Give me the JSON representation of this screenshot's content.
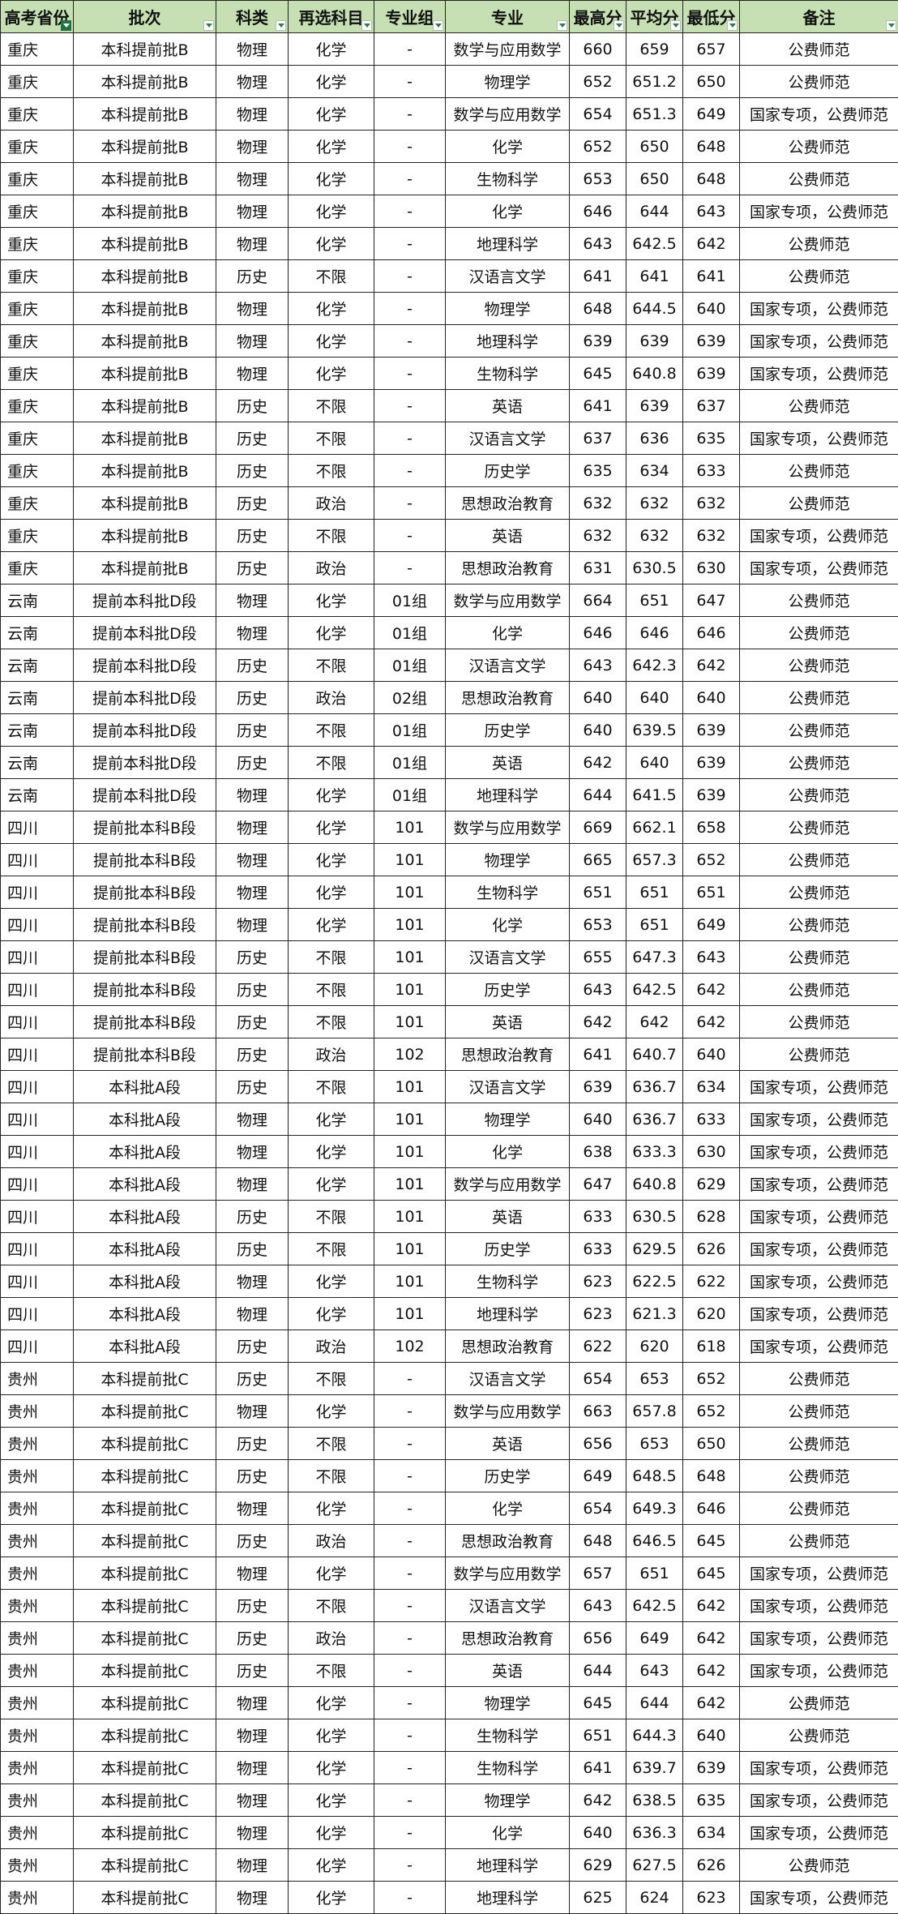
{
  "headers": [
    "高考省份",
    "批次",
    "科类",
    "再选科目",
    "专业组",
    "专业",
    "最高分",
    "平均分",
    "最低分",
    "备注"
  ],
  "filter_active_column": 0,
  "colors": {
    "header_bg": "#c6e0b4",
    "filter_active": "#217346"
  },
  "rows": [
    [
      "重庆",
      "本科提前批B",
      "物理",
      "化学",
      "-",
      "数学与应用数学",
      "660",
      "659",
      "657",
      "公费师范"
    ],
    [
      "重庆",
      "本科提前批B",
      "物理",
      "化学",
      "-",
      "物理学",
      "652",
      "651.2",
      "650",
      "公费师范"
    ],
    [
      "重庆",
      "本科提前批B",
      "物理",
      "化学",
      "-",
      "数学与应用数学",
      "654",
      "651.3",
      "649",
      "国家专项，公费师范"
    ],
    [
      "重庆",
      "本科提前批B",
      "物理",
      "化学",
      "-",
      "化学",
      "652",
      "650",
      "648",
      "公费师范"
    ],
    [
      "重庆",
      "本科提前批B",
      "物理",
      "化学",
      "-",
      "生物科学",
      "653",
      "650",
      "648",
      "公费师范"
    ],
    [
      "重庆",
      "本科提前批B",
      "物理",
      "化学",
      "-",
      "化学",
      "646",
      "644",
      "643",
      "国家专项，公费师范"
    ],
    [
      "重庆",
      "本科提前批B",
      "物理",
      "化学",
      "-",
      "地理科学",
      "643",
      "642.5",
      "642",
      "公费师范"
    ],
    [
      "重庆",
      "本科提前批B",
      "历史",
      "不限",
      "-",
      "汉语言文学",
      "641",
      "641",
      "641",
      "公费师范"
    ],
    [
      "重庆",
      "本科提前批B",
      "物理",
      "化学",
      "-",
      "物理学",
      "648",
      "644.5",
      "640",
      "国家专项，公费师范"
    ],
    [
      "重庆",
      "本科提前批B",
      "物理",
      "化学",
      "-",
      "地理科学",
      "639",
      "639",
      "639",
      "国家专项，公费师范"
    ],
    [
      "重庆",
      "本科提前批B",
      "物理",
      "化学",
      "-",
      "生物科学",
      "645",
      "640.8",
      "639",
      "国家专项，公费师范"
    ],
    [
      "重庆",
      "本科提前批B",
      "历史",
      "不限",
      "-",
      "英语",
      "641",
      "639",
      "637",
      "公费师范"
    ],
    [
      "重庆",
      "本科提前批B",
      "历史",
      "不限",
      "-",
      "汉语言文学",
      "637",
      "636",
      "635",
      "国家专项，公费师范"
    ],
    [
      "重庆",
      "本科提前批B",
      "历史",
      "不限",
      "-",
      "历史学",
      "635",
      "634",
      "633",
      "公费师范"
    ],
    [
      "重庆",
      "本科提前批B",
      "历史",
      "政治",
      "-",
      "思想政治教育",
      "632",
      "632",
      "632",
      "公费师范"
    ],
    [
      "重庆",
      "本科提前批B",
      "历史",
      "不限",
      "-",
      "英语",
      "632",
      "632",
      "632",
      "国家专项，公费师范"
    ],
    [
      "重庆",
      "本科提前批B",
      "历史",
      "政治",
      "-",
      "思想政治教育",
      "631",
      "630.5",
      "630",
      "国家专项，公费师范"
    ],
    [
      "云南",
      "提前本科批D段",
      "物理",
      "化学",
      "01组",
      "数学与应用数学",
      "664",
      "651",
      "647",
      "公费师范"
    ],
    [
      "云南",
      "提前本科批D段",
      "物理",
      "化学",
      "01组",
      "化学",
      "646",
      "646",
      "646",
      "公费师范"
    ],
    [
      "云南",
      "提前本科批D段",
      "历史",
      "不限",
      "01组",
      "汉语言文学",
      "643",
      "642.3",
      "642",
      "公费师范"
    ],
    [
      "云南",
      "提前本科批D段",
      "历史",
      "政治",
      "02组",
      "思想政治教育",
      "640",
      "640",
      "640",
      "公费师范"
    ],
    [
      "云南",
      "提前本科批D段",
      "历史",
      "不限",
      "01组",
      "历史学",
      "640",
      "639.5",
      "639",
      "公费师范"
    ],
    [
      "云南",
      "提前本科批D段",
      "历史",
      "不限",
      "01组",
      "英语",
      "642",
      "640",
      "639",
      "公费师范"
    ],
    [
      "云南",
      "提前本科批D段",
      "物理",
      "化学",
      "01组",
      "地理科学",
      "644",
      "641.5",
      "639",
      "公费师范"
    ],
    [
      "四川",
      "提前批本科B段",
      "物理",
      "化学",
      "101",
      "数学与应用数学",
      "669",
      "662.1",
      "658",
      "公费师范"
    ],
    [
      "四川",
      "提前批本科B段",
      "物理",
      "化学",
      "101",
      "物理学",
      "665",
      "657.3",
      "652",
      "公费师范"
    ],
    [
      "四川",
      "提前批本科B段",
      "物理",
      "化学",
      "101",
      "生物科学",
      "651",
      "651",
      "651",
      "公费师范"
    ],
    [
      "四川",
      "提前批本科B段",
      "物理",
      "化学",
      "101",
      "化学",
      "653",
      "651",
      "649",
      "公费师范"
    ],
    [
      "四川",
      "提前批本科B段",
      "历史",
      "不限",
      "101",
      "汉语言文学",
      "655",
      "647.3",
      "643",
      "公费师范"
    ],
    [
      "四川",
      "提前批本科B段",
      "历史",
      "不限",
      "101",
      "历史学",
      "643",
      "642.5",
      "642",
      "公费师范"
    ],
    [
      "四川",
      "提前批本科B段",
      "历史",
      "不限",
      "101",
      "英语",
      "642",
      "642",
      "642",
      "公费师范"
    ],
    [
      "四川",
      "提前批本科B段",
      "历史",
      "政治",
      "102",
      "思想政治教育",
      "641",
      "640.7",
      "640",
      "公费师范"
    ],
    [
      "四川",
      "本科批A段",
      "历史",
      "不限",
      "101",
      "汉语言文学",
      "639",
      "636.7",
      "634",
      "国家专项，公费师范"
    ],
    [
      "四川",
      "本科批A段",
      "物理",
      "化学",
      "101",
      "物理学",
      "640",
      "636.7",
      "633",
      "国家专项，公费师范"
    ],
    [
      "四川",
      "本科批A段",
      "物理",
      "化学",
      "101",
      "化学",
      "638",
      "633.3",
      "630",
      "国家专项，公费师范"
    ],
    [
      "四川",
      "本科批A段",
      "物理",
      "化学",
      "101",
      "数学与应用数学",
      "647",
      "640.8",
      "629",
      "国家专项，公费师范"
    ],
    [
      "四川",
      "本科批A段",
      "历史",
      "不限",
      "101",
      "英语",
      "633",
      "630.5",
      "628",
      "国家专项，公费师范"
    ],
    [
      "四川",
      "本科批A段",
      "历史",
      "不限",
      "101",
      "历史学",
      "633",
      "629.5",
      "626",
      "国家专项，公费师范"
    ],
    [
      "四川",
      "本科批A段",
      "物理",
      "化学",
      "101",
      "生物科学",
      "623",
      "622.5",
      "622",
      "国家专项，公费师范"
    ],
    [
      "四川",
      "本科批A段",
      "物理",
      "化学",
      "101",
      "地理科学",
      "623",
      "621.3",
      "620",
      "国家专项，公费师范"
    ],
    [
      "四川",
      "本科批A段",
      "历史",
      "政治",
      "102",
      "思想政治教育",
      "622",
      "620",
      "618",
      "国家专项，公费师范"
    ],
    [
      "贵州",
      "本科提前批C",
      "历史",
      "不限",
      "-",
      "汉语言文学",
      "654",
      "653",
      "652",
      "公费师范"
    ],
    [
      "贵州",
      "本科提前批C",
      "物理",
      "化学",
      "-",
      "数学与应用数学",
      "663",
      "657.8",
      "652",
      "公费师范"
    ],
    [
      "贵州",
      "本科提前批C",
      "历史",
      "不限",
      "-",
      "英语",
      "656",
      "653",
      "650",
      "公费师范"
    ],
    [
      "贵州",
      "本科提前批C",
      "历史",
      "不限",
      "-",
      "历史学",
      "649",
      "648.5",
      "648",
      "公费师范"
    ],
    [
      "贵州",
      "本科提前批C",
      "物理",
      "化学",
      "-",
      "化学",
      "654",
      "649.3",
      "646",
      "公费师范"
    ],
    [
      "贵州",
      "本科提前批C",
      "历史",
      "政治",
      "-",
      "思想政治教育",
      "648",
      "646.5",
      "645",
      "公费师范"
    ],
    [
      "贵州",
      "本科提前批C",
      "物理",
      "化学",
      "-",
      "数学与应用数学",
      "657",
      "651",
      "645",
      "国家专项，公费师范"
    ],
    [
      "贵州",
      "本科提前批C",
      "历史",
      "不限",
      "-",
      "汉语言文学",
      "643",
      "642.5",
      "642",
      "国家专项，公费师范"
    ],
    [
      "贵州",
      "本科提前批C",
      "历史",
      "政治",
      "-",
      "思想政治教育",
      "656",
      "649",
      "642",
      "国家专项，公费师范"
    ],
    [
      "贵州",
      "本科提前批C",
      "历史",
      "不限",
      "-",
      "英语",
      "644",
      "643",
      "642",
      "国家专项，公费师范"
    ],
    [
      "贵州",
      "本科提前批C",
      "物理",
      "化学",
      "-",
      "物理学",
      "645",
      "644",
      "642",
      "公费师范"
    ],
    [
      "贵州",
      "本科提前批C",
      "物理",
      "化学",
      "-",
      "生物科学",
      "651",
      "644.3",
      "640",
      "公费师范"
    ],
    [
      "贵州",
      "本科提前批C",
      "物理",
      "化学",
      "-",
      "生物科学",
      "641",
      "639.7",
      "639",
      "国家专项，公费师范"
    ],
    [
      "贵州",
      "本科提前批C",
      "物理",
      "化学",
      "-",
      "物理学",
      "642",
      "638.5",
      "635",
      "国家专项，公费师范"
    ],
    [
      "贵州",
      "本科提前批C",
      "物理",
      "化学",
      "-",
      "化学",
      "640",
      "636.3",
      "634",
      "国家专项，公费师范"
    ],
    [
      "贵州",
      "本科提前批C",
      "物理",
      "化学",
      "-",
      "地理科学",
      "629",
      "627.5",
      "626",
      "公费师范"
    ],
    [
      "贵州",
      "本科提前批C",
      "物理",
      "化学",
      "-",
      "地理科学",
      "625",
      "624",
      "623",
      "国家专项，公费师范"
    ]
  ]
}
